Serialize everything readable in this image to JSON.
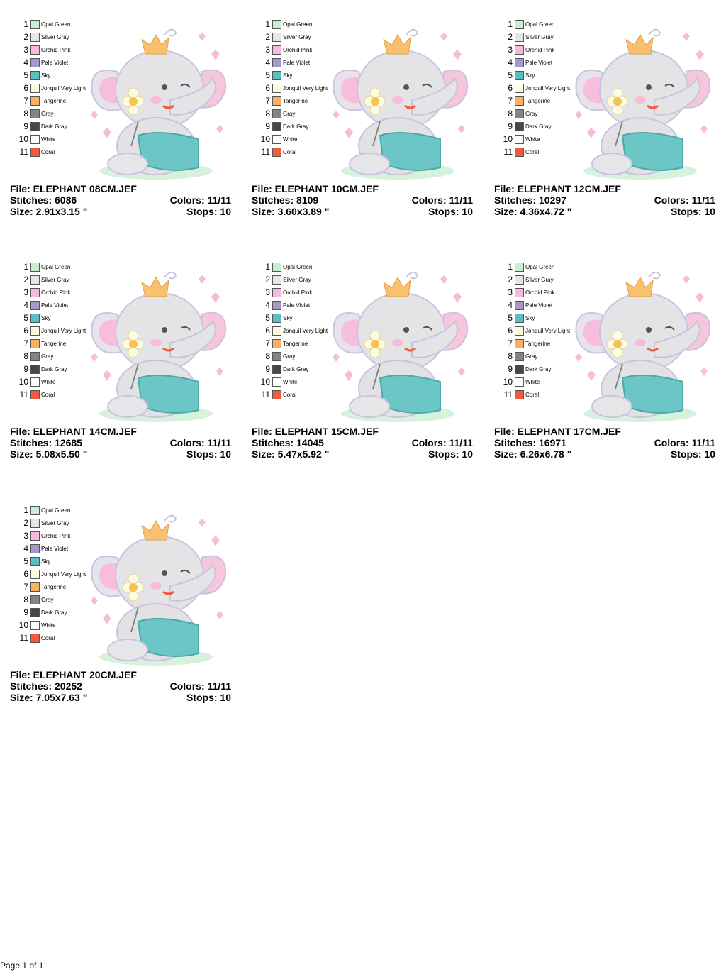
{
  "palette": [
    {
      "number": "1",
      "name": "Opal Green",
      "color": "#c9eed3"
    },
    {
      "number": "2",
      "name": "Silver Gray",
      "color": "#e6e6e6"
    },
    {
      "number": "3",
      "name": "Orchid Pink",
      "color": "#f8b9dc"
    },
    {
      "number": "4",
      "name": "Pale Violet",
      "color": "#a797cb"
    },
    {
      "number": "5",
      "name": "Sky",
      "color": "#58bfc4"
    },
    {
      "number": "6",
      "name": "Jonquil Very Light",
      "color": "#fffbe1"
    },
    {
      "number": "7",
      "name": "Tangerine",
      "color": "#f9b25e"
    },
    {
      "number": "8",
      "name": "Gray",
      "color": "#7f8786"
    },
    {
      "number": "9",
      "name": "Dark Gray",
      "color": "#474747"
    },
    {
      "number": "10",
      "name": "White",
      "color": "#ffffff"
    },
    {
      "number": "11",
      "name": "Coral",
      "color": "#f05a3e"
    }
  ],
  "designs": [
    {
      "file": "File: ELEPHANT 08CM.JEF",
      "stitches": "Stitches: 6086",
      "colors": "Colors: 11/11",
      "size": "Size: 2.91x3.15 \"",
      "stops": "Stops: 10"
    },
    {
      "file": "File: ELEPHANT 10CM.JEF",
      "stitches": "Stitches: 8109",
      "colors": "Colors: 11/11",
      "size": "Size: 3.60x3.89 \"",
      "stops": "Stops: 10"
    },
    {
      "file": "File: ELEPHANT 12CM.JEF",
      "stitches": "Stitches: 10297",
      "colors": "Colors: 11/11",
      "size": "Size: 4.36x4.72 \"",
      "stops": "Stops: 10"
    },
    {
      "file": "File: ELEPHANT 14CM.JEF",
      "stitches": "Stitches: 12685",
      "colors": "Colors: 11/11",
      "size": "Size: 5.08x5.50 \"",
      "stops": "Stops: 10"
    },
    {
      "file": "File: ELEPHANT 15CM.JEF",
      "stitches": "Stitches: 14045",
      "colors": "Colors: 11/11",
      "size": "Size: 5.47x5.92 \"",
      "stops": "Stops: 10"
    },
    {
      "file": "File: ELEPHANT 17CM.JEF",
      "stitches": "Stitches: 16971",
      "colors": "Colors: 11/11",
      "size": "Size: 6.26x6.78 \"",
      "stops": "Stops: 10"
    },
    {
      "file": "File: ELEPHANT 20CM.JEF",
      "stitches": "Stitches: 20252",
      "colors": "Colors: 11/11",
      "size": "Size: 7.05x7.63 \"",
      "stops": "Stops: 10"
    }
  ],
  "footer": "Page 1 of 1"
}
